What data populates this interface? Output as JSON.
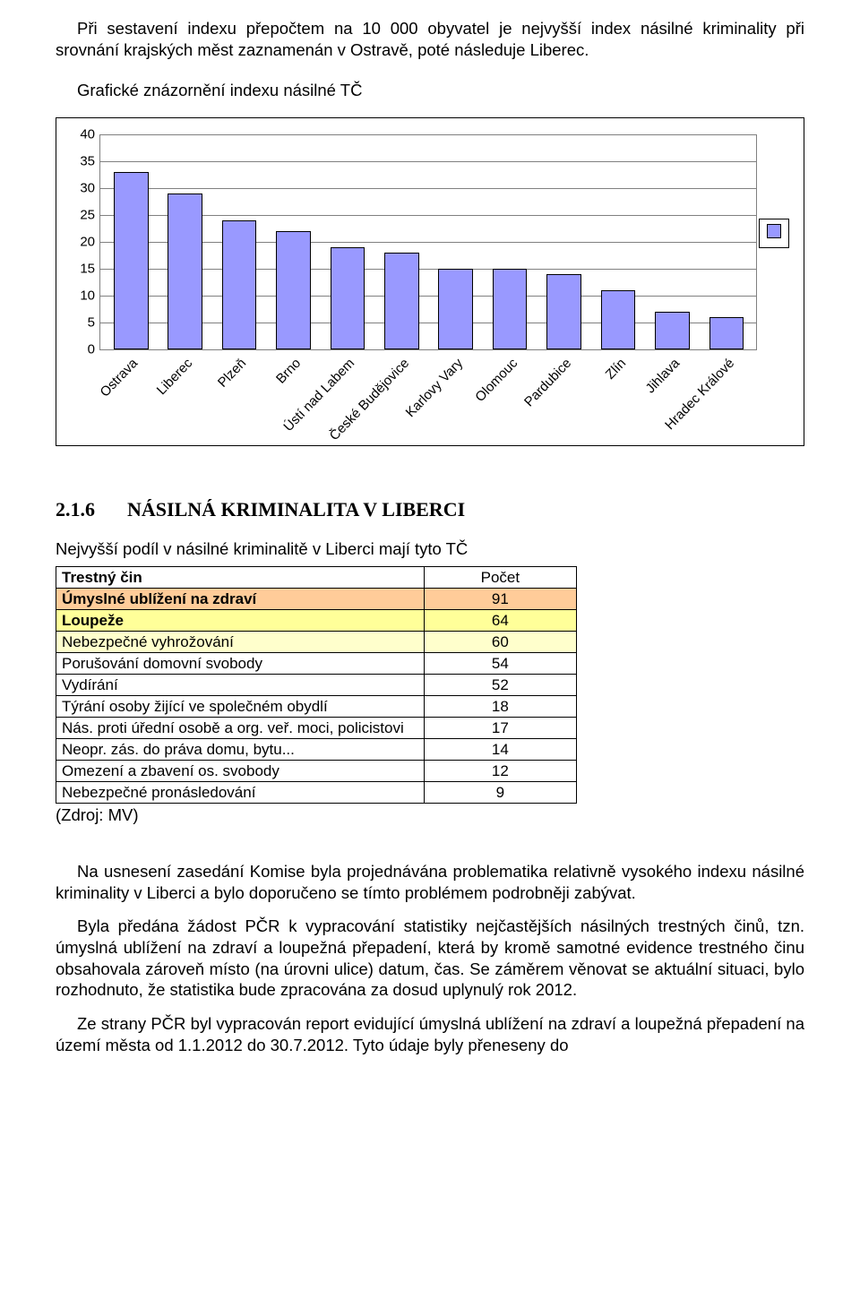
{
  "paragraphs": {
    "intro_top": "Při sestavení indexu přepočtem na 10 000 obyvatel je nejvyšší index násilné kriminality při srovnání krajských měst zaznamenán v Ostravě, poté následuje Liberec.",
    "chart_title": "Grafické znázornění indexu násilné TČ",
    "p1": "Na usnesení zasedání Komise byla projednávána problematika relativně vysokého indexu násilné kriminality v Liberci a bylo doporučeno se tímto problémem podrobněji zabývat.",
    "p2": "Byla předána žádost PČR  k vypracování statistiky nejčastějších násilných trestných činů, tzn. úmyslná ublížení na zdraví a loupežná přepadení, která by kromě samotné evidence trestného činu obsahovala zároveň místo (na úrovni ulice) datum, čas. Se záměrem věnovat se aktuální situaci, bylo rozhodnuto, že statistika bude zpracována za dosud uplynulý rok 2012.",
    "p3": "Ze strany PČR byl vypracován report evidující úmyslná ublížení na zdraví a loupežná přepadení na  území  města  od  1.1.2012  do  30.7.2012.   Tyto  údaje  byly  přeneseny  do"
  },
  "chart": {
    "type": "bar",
    "categories": [
      "Ostrava",
      "Liberec",
      "Plzeň",
      "Brno",
      "Ústí nad Labem",
      "České Budějovice",
      "Karlovy Vary",
      "Olomouc",
      "Pardubice",
      "Zlín",
      "Jihlava",
      "Hradec Králové"
    ],
    "values": [
      33,
      29,
      24,
      22,
      19,
      18,
      15,
      15,
      14,
      11,
      7,
      6
    ],
    "ymax": 40,
    "ytick_step": 5,
    "bar_fill": "#9999ff",
    "bar_border": "#000000",
    "grid_color": "#808080",
    "background_color": "#ffffff",
    "legend_swatch_color": "#9999ff",
    "tick_fontsize": 15,
    "xlabel_rotation_deg": -46
  },
  "section": {
    "number": "2.1.6",
    "title": "NÁSILNÁ KRIMINALITA V LIBERCI"
  },
  "table": {
    "intro": "Nejvyšší podíl v násilné kriminalitě v Liberci mají tyto TČ",
    "header": {
      "label": "Trestný čin",
      "count": "Počet"
    },
    "rows": [
      {
        "label": "Úmyslné ublížení na zdraví",
        "count": 91,
        "bg": "#ffcc99",
        "bold": true
      },
      {
        "label": "Loupeže",
        "count": 64,
        "bg": "#ffff99",
        "bold": true
      },
      {
        "label": "Nebezpečné vyhrožování",
        "count": 60,
        "bg": "#ffffcc",
        "bold": false
      },
      {
        "label": "Porušování domovní svobody",
        "count": 54,
        "bg": "#ffffff",
        "bold": false
      },
      {
        "label": "Vydírání",
        "count": 52,
        "bg": "#ffffff",
        "bold": false
      },
      {
        "label": "Týrání osoby žijící ve společném obydlí",
        "count": 18,
        "bg": "#ffffff",
        "bold": false
      },
      {
        "label": "Nás. proti úřední osobě a org. veř. moci, policistovi",
        "count": 17,
        "bg": "#ffffff",
        "bold": false
      },
      {
        "label": "Neopr. zás. do práva domu, bytu...",
        "count": 14,
        "bg": "#ffffff",
        "bold": false
      },
      {
        "label": "Omezení a zbavení os. svobody",
        "count": 12,
        "bg": "#ffffff",
        "bold": false
      },
      {
        "label": "Nebezpečné pronásledování",
        "count": 9,
        "bg": "#ffffff",
        "bold": false
      }
    ],
    "source": "(Zdroj: MV)"
  },
  "colors": {
    "text": "#000000",
    "page_bg": "#ffffff"
  }
}
